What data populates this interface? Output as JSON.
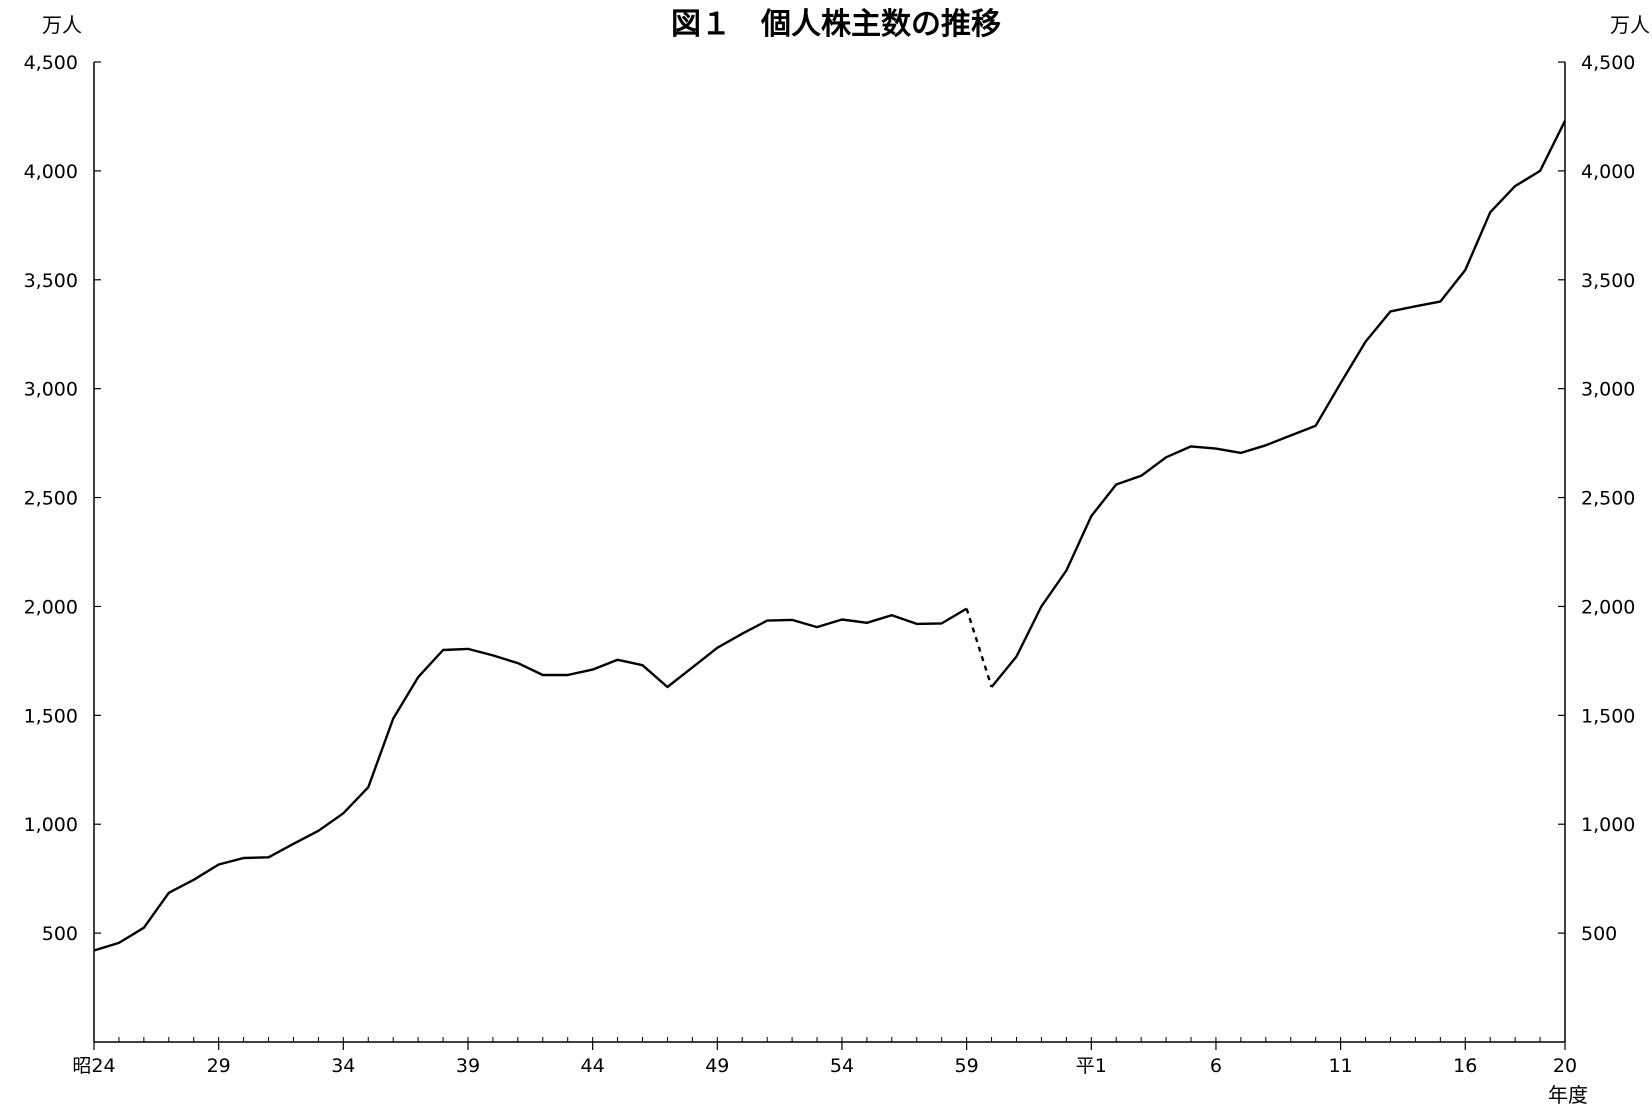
{
  "chart_data": {
    "type": "line",
    "title": "図１　個人株主数の推移",
    "ylabel_left": "万人",
    "ylabel_right": "万人",
    "xlabel": "年度",
    "ylim": [
      0,
      4500
    ],
    "y_ticks": [
      500,
      1000,
      1500,
      2000,
      2500,
      3000,
      3500,
      4000,
      4500
    ],
    "y_tick_labels": [
      "500",
      "1,000",
      "1,500",
      "2,000",
      "2,500",
      "3,000",
      "3,500",
      "4,000",
      "4,500"
    ],
    "x_tick_labels": [
      "昭24",
      "29",
      "34",
      "39",
      "44",
      "49",
      "54",
      "59",
      "平1",
      "6",
      "11",
      "16",
      "20"
    ],
    "grid": false,
    "series": [
      {
        "segments": [
          {
            "style": "solid",
            "x": [
              1949,
              1950,
              1951,
              1952,
              1953,
              1954,
              1955,
              1956,
              1957,
              1958,
              1959,
              1960,
              1961,
              1962,
              1963,
              1964,
              1965,
              1966,
              1967,
              1968,
              1969,
              1970,
              1971,
              1972,
              1973,
              1974,
              1975,
              1976,
              1977,
              1978,
              1979,
              1980,
              1981,
              1982,
              1983,
              1984
            ],
            "y": [
              420,
              455,
              525,
              685,
              745,
              815,
              845,
              848,
              910,
              970,
              1050,
              1170,
              1485,
              1675,
              1800,
              1805,
              1775,
              1740,
              1685,
              1685,
              1710,
              1755,
              1730,
              1630,
              1720,
              1810,
              1875,
              1935,
              1938,
              1905,
              1940,
              1925,
              1960,
              1920,
              1922,
              1990
            ]
          },
          {
            "style": "dotted",
            "x": [
              1984,
              1985
            ],
            "y": [
              1990,
              1630
            ]
          },
          {
            "style": "solid",
            "x": [
              1985,
              1986,
              1987,
              1988,
              1989,
              1990,
              1991,
              1992,
              1993,
              1994,
              1995,
              1996,
              1997,
              1998,
              1999,
              2000,
              2001,
              2002,
              2003,
              2004,
              2005,
              2006,
              2007,
              2008
            ],
            "y": [
              1630,
              1770,
              2000,
              2165,
              2415,
              2560,
              2600,
              2685,
              2735,
              2725,
              2705,
              2740,
              2785,
              2830,
              3025,
              3215,
              3355,
              3378,
              3400,
              3545,
              3810,
              3930,
              4000,
              4230
            ]
          }
        ]
      }
    ]
  }
}
